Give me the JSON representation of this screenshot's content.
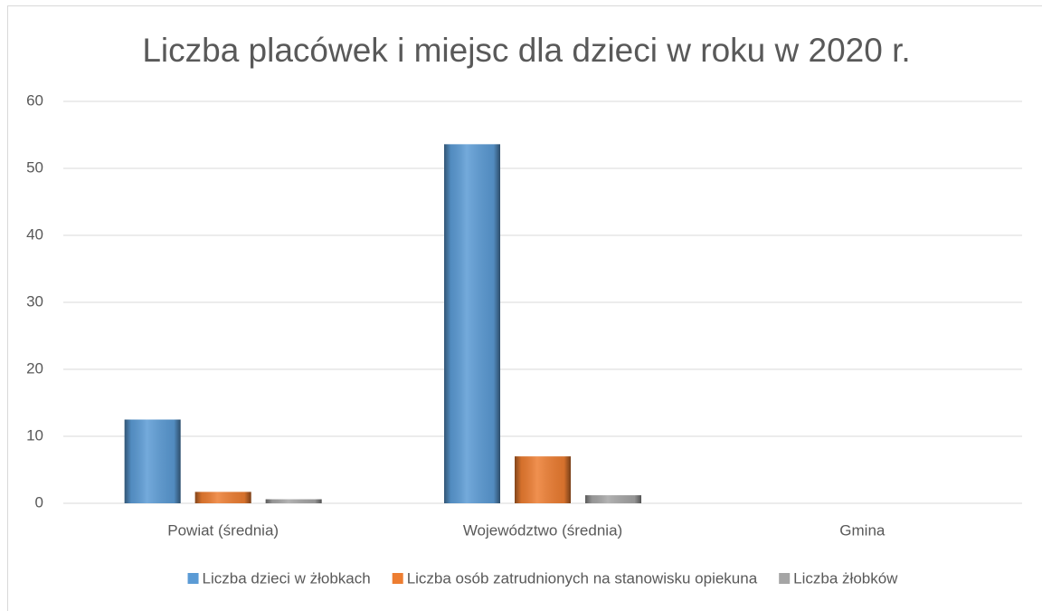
{
  "chart_data": {
    "type": "bar",
    "title": "Liczba placówek i miejsc dla dzieci w roku w 2020 r.",
    "categories": [
      "Powiat (średnia)",
      "Województwo (średnia)",
      "Gmina"
    ],
    "series": [
      {
        "name": "Liczba dzieci w żłobkach",
        "color": "#5b9bd5",
        "values": [
          12.5,
          53.6,
          0
        ]
      },
      {
        "name": "Liczba osób zatrudnionych na stanowisku opiekuna",
        "color": "#ed7d31",
        "values": [
          1.7,
          7.0,
          0
        ]
      },
      {
        "name": "Liczba żłobków",
        "color": "#a5a5a5",
        "values": [
          0.6,
          1.2,
          0
        ]
      }
    ],
    "ylim": [
      0,
      60
    ],
    "yticks": [
      0,
      10,
      20,
      30,
      40,
      50,
      60
    ],
    "grid": true,
    "legend": "bottom"
  }
}
